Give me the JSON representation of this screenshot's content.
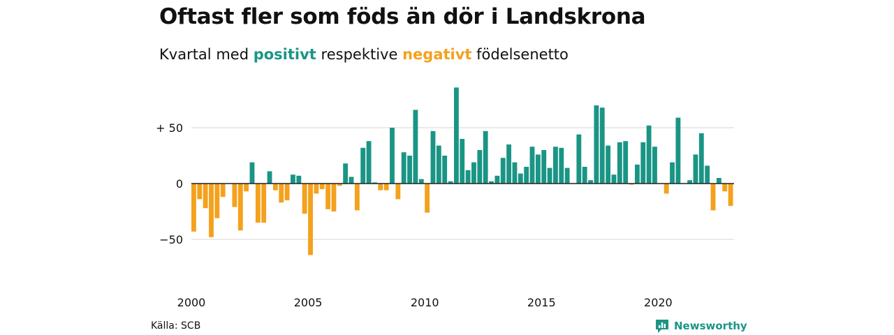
{
  "header": {
    "title": "Oftast fler som föds än dör i Landskrona",
    "subtitle_prefix": "Kvartal med",
    "subtitle_positive": "positivt",
    "subtitle_middle": "respektive",
    "subtitle_negative": "negativt",
    "subtitle_suffix": "födelsenetto"
  },
  "footer": {
    "source": "Källa: SCB",
    "brand": "Newsworthy"
  },
  "colors": {
    "positive": "#1a9585",
    "negative": "#f4a11c",
    "grid": "#dddddd",
    "zero_line": "#222222",
    "text": "#111111"
  },
  "chart_data": {
    "type": "bar",
    "title": "Oftast fler som föds än dör i Landskrona",
    "subtitle": "Kvartal med positivt respektive negativt födelsenetto",
    "xlabel": "",
    "ylabel": "",
    "x_start": 2000,
    "x_tick_labels": [
      "2000",
      "2005",
      "2010",
      "2015",
      "2020"
    ],
    "y_tick_labels": [
      "+ 50",
      "0",
      "−50"
    ],
    "y_ticks": [
      50,
      0,
      -50
    ],
    "ylim": [
      -80,
      90
    ],
    "grid": true,
    "values": [
      -43,
      -14,
      -22,
      -48,
      -31,
      -12,
      0,
      -21,
      -42,
      -7,
      19,
      -35,
      -35,
      11,
      -6,
      -17,
      -15,
      8,
      7,
      -27,
      -64,
      -9,
      -5,
      -23,
      -25,
      -2,
      18,
      6,
      -24,
      32,
      38,
      1,
      -6,
      -6,
      50,
      -14,
      28,
      25,
      66,
      4,
      -26,
      47,
      34,
      25,
      2,
      86,
      40,
      12,
      19,
      30,
      47,
      2,
      7,
      23,
      35,
      19,
      9,
      15,
      33,
      26,
      30,
      14,
      33,
      32,
      14,
      0,
      44,
      15,
      3,
      70,
      68,
      34,
      8,
      37,
      38,
      -1,
      17,
      37,
      52,
      33,
      0,
      -9,
      19,
      59,
      0,
      3,
      26,
      45,
      16,
      -24,
      5,
      -7,
      -20
    ]
  }
}
